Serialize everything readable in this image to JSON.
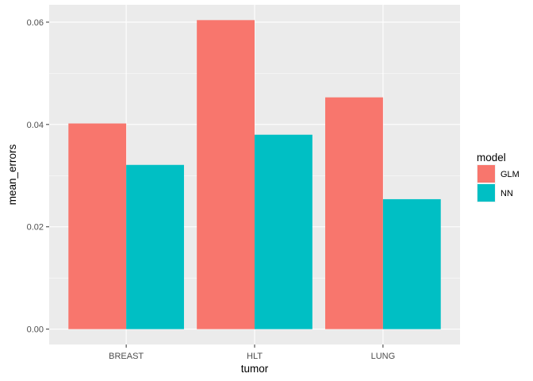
{
  "chart_data": {
    "type": "bar",
    "categories": [
      "BREAST",
      "HLT",
      "LUNG"
    ],
    "series": [
      {
        "name": "GLM",
        "values": [
          0.0402,
          0.0604,
          0.0453
        ],
        "color": "#F8766D"
      },
      {
        "name": "NN",
        "values": [
          0.0321,
          0.038,
          0.0254
        ],
        "color": "#00BFC4"
      }
    ],
    "xlabel": "tumor",
    "ylabel": "mean_errors",
    "ylim": [
      -0.003,
      0.0634
    ],
    "yticks": [
      0.0,
      0.02,
      0.04,
      0.06
    ],
    "ytick_labels": [
      "0.00",
      "0.02",
      "0.04",
      "0.06"
    ],
    "legend": {
      "title": "model",
      "placement": "right"
    },
    "panel_background": "#EBEBEB",
    "grid_color": "#FFFFFF",
    "grid": true
  }
}
